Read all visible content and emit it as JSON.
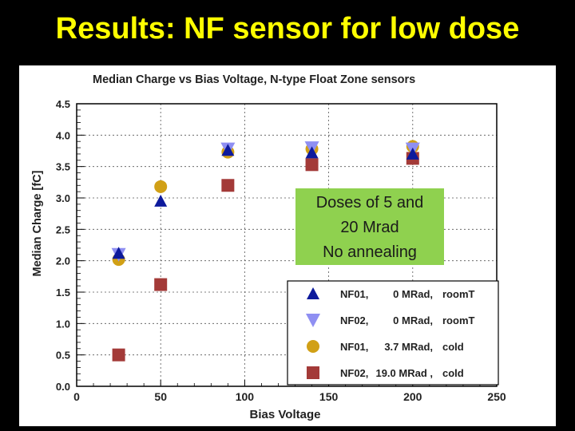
{
  "slide": {
    "title": "Results: NF sensor for low dose"
  },
  "annotation": {
    "lines": [
      "Doses of 5 and",
      "20 Mrad",
      "No annealing"
    ]
  },
  "chart_data": {
    "type": "scatter",
    "title": "Median Charge vs Bias Voltage, N-type Float Zone sensors",
    "xlabel": "Bias Voltage",
    "ylabel": "Median Charge [fC]",
    "xlim": [
      0,
      250
    ],
    "ylim": [
      0,
      4.5
    ],
    "xticks": [
      0,
      50,
      100,
      150,
      200,
      250
    ],
    "xtick_labels": [
      "0",
      "50",
      "100",
      "150",
      "200",
      "250"
    ],
    "yticks": [
      0,
      0.5,
      1.0,
      1.5,
      2.0,
      2.5,
      3.0,
      3.5,
      4.0,
      4.5
    ],
    "ytick_labels": [
      "0.0",
      "0.5",
      "1.0",
      "1.5",
      "2.0",
      "2.5",
      "3.0",
      "3.5",
      "4.0",
      "4.5"
    ],
    "grid": true,
    "legend_position": "bottom-right",
    "series": [
      {
        "name": "NF01",
        "dose": "0 MRad",
        "condition": "roomT",
        "marker": "triangle-up",
        "color": "#0d1a9c",
        "x": [
          25,
          50,
          90,
          140,
          200
        ],
        "y": [
          2.12,
          2.95,
          3.76,
          3.72,
          3.7
        ]
      },
      {
        "name": "NF02",
        "dose": "0 MRad",
        "condition": "roomT",
        "marker": "triangle-down",
        "color": "#8f8ff2",
        "x": [
          25,
          90,
          140,
          200
        ],
        "y": [
          2.1,
          3.78,
          3.8,
          3.78
        ]
      },
      {
        "name": "NF01",
        "dose": "3.7 MRad",
        "condition": "cold",
        "marker": "circle",
        "color": "#d1a016",
        "x": [
          25,
          50,
          90,
          140,
          200
        ],
        "y": [
          2.02,
          3.18,
          3.73,
          3.78,
          3.82
        ]
      },
      {
        "name": "NF02",
        "dose": "19.0 MRad",
        "condition": "cold",
        "marker": "square",
        "color": "#a33a38",
        "x": [
          25,
          50,
          90,
          140,
          200
        ],
        "y": [
          0.5,
          1.62,
          3.2,
          3.53,
          3.63
        ]
      }
    ],
    "legend": [
      {
        "name": "NF01,",
        "dose": "0 MRad,",
        "condition": "roomT"
      },
      {
        "name": "NF02,",
        "dose": "0 MRad,",
        "condition": "roomT"
      },
      {
        "name": "NF01,",
        "dose": "3.7 MRad,",
        "condition": "cold"
      },
      {
        "name": "NF02,",
        "dose": "19.0 MRad ,",
        "condition": "cold"
      }
    ]
  }
}
